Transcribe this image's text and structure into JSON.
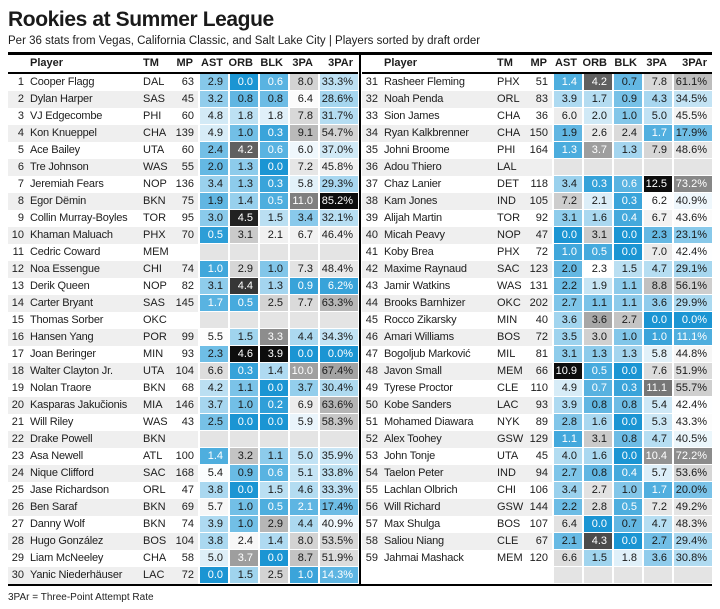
{
  "title": "Rookies at Summer League",
  "subtitle": "Per 36 stats from Vegas, California Classic, and Salt Lake City | Players sorted by draft order",
  "footnote": "3PAr = Three-Point Attempt Rate",
  "columns": [
    "Player",
    "TM",
    "MP",
    "AST",
    "ORB",
    "BLK",
    "3PA",
    "3PAr"
  ],
  "palette": {
    "stops": [
      [
        0,
        "#1b95d3"
      ],
      [
        0.25,
        "#7fc5e9"
      ],
      [
        0.45,
        "#d7ecf7"
      ],
      [
        0.5,
        "#ffffff"
      ],
      [
        0.55,
        "#ededed"
      ],
      [
        0.75,
        "#b4b4b4"
      ],
      [
        0.88,
        "#7f7f7f"
      ],
      [
        1,
        "#0d0d0d"
      ]
    ],
    "white_text_low": 0.17,
    "white_text_high": 0.8,
    "dark_text": "#1a1a1a",
    "white_text": "#ffffff",
    "stripe": "#efefef",
    "missing_cell": "#e4e4e4"
  },
  "chart_data": {
    "type": "table",
    "title": "Rookies at Summer League",
    "stat_columns": [
      "AST",
      "ORB",
      "BLK",
      "3PA",
      "3PAr"
    ],
    "players": [
      {
        "rank": 1,
        "name": "Cooper Flagg",
        "tm": "DAL",
        "mp": 63,
        "ast": 2.9,
        "orb": 0.0,
        "blk": 0.6,
        "tpa": 8.0,
        "tpar": 33.3
      },
      {
        "rank": 2,
        "name": "Dylan Harper",
        "tm": "SAS",
        "mp": 45,
        "ast": 3.2,
        "orb": 0.8,
        "blk": 0.8,
        "tpa": 6.4,
        "tpar": 28.6
      },
      {
        "rank": 3,
        "name": "VJ Edgecombe",
        "tm": "PHI",
        "mp": 60,
        "ast": 4.8,
        "orb": 1.8,
        "blk": 1.8,
        "tpa": 7.8,
        "tpar": 31.7
      },
      {
        "rank": 4,
        "name": "Kon Knueppel",
        "tm": "CHA",
        "mp": 139,
        "ast": 4.9,
        "orb": 1.0,
        "blk": 0.3,
        "tpa": 9.1,
        "tpar": 54.7
      },
      {
        "rank": 5,
        "name": "Ace Bailey",
        "tm": "UTA",
        "mp": 60,
        "ast": 2.4,
        "orb": 4.2,
        "blk": 0.6,
        "tpa": 6.0,
        "tpar": 37.0
      },
      {
        "rank": 6,
        "name": "Tre Johnson",
        "tm": "WAS",
        "mp": 55,
        "ast": 2.0,
        "orb": 1.3,
        "blk": 0.0,
        "tpa": 7.2,
        "tpar": 45.8
      },
      {
        "rank": 7,
        "name": "Jeremiah Fears",
        "tm": "NOP",
        "mp": 136,
        "ast": 3.4,
        "orb": 1.3,
        "blk": 0.3,
        "tpa": 5.8,
        "tpar": 29.3
      },
      {
        "rank": 8,
        "name": "Egor Dëmin",
        "tm": "BKN",
        "mp": 75,
        "ast": 1.9,
        "orb": 1.4,
        "blk": 0.5,
        "tpa": 11.0,
        "tpar": 85.2
      },
      {
        "rank": 9,
        "name": "Collin Murray-Boyles",
        "tm": "TOR",
        "mp": 95,
        "ast": 3.0,
        "orb": 4.5,
        "blk": 1.5,
        "tpa": 3.4,
        "tpar": 32.1
      },
      {
        "rank": 10,
        "name": "Khaman Maluach",
        "tm": "PHX",
        "mp": 70,
        "ast": 0.5,
        "orb": 3.1,
        "blk": 2.1,
        "tpa": 6.7,
        "tpar": 46.4
      },
      {
        "rank": 11,
        "name": "Cedric Coward",
        "tm": "MEM",
        "mp": null,
        "ast": null,
        "orb": null,
        "blk": null,
        "tpa": null,
        "tpar": null
      },
      {
        "rank": 12,
        "name": "Noa Essengue",
        "tm": "CHI",
        "mp": 74,
        "ast": 1.0,
        "orb": 2.9,
        "blk": 1.0,
        "tpa": 7.3,
        "tpar": 48.4
      },
      {
        "rank": 13,
        "name": "Derik Queen",
        "tm": "NOP",
        "mp": 82,
        "ast": 3.1,
        "orb": 4.4,
        "blk": 1.3,
        "tpa": 0.9,
        "tpar": 6.2
      },
      {
        "rank": 14,
        "name": "Carter Bryant",
        "tm": "SAS",
        "mp": 145,
        "ast": 1.7,
        "orb": 0.5,
        "blk": 2.5,
        "tpa": 7.7,
        "tpar": 63.3
      },
      {
        "rank": 15,
        "name": "Thomas Sorber",
        "tm": "OKC",
        "mp": null,
        "ast": null,
        "orb": null,
        "blk": null,
        "tpa": null,
        "tpar": null
      },
      {
        "rank": 16,
        "name": "Hansen Yang",
        "tm": "POR",
        "mp": 99,
        "ast": 5.5,
        "orb": 1.5,
        "blk": 3.3,
        "tpa": 4.4,
        "tpar": 34.3
      },
      {
        "rank": 17,
        "name": "Joan Beringer",
        "tm": "MIN",
        "mp": 93,
        "ast": 2.3,
        "orb": 4.6,
        "blk": 3.9,
        "tpa": 0.0,
        "tpar": 0.0
      },
      {
        "rank": 18,
        "name": "Walter Clayton Jr.",
        "tm": "UTA",
        "mp": 104,
        "ast": 6.6,
        "orb": 0.3,
        "blk": 1.4,
        "tpa": 10.0,
        "tpar": 67.4
      },
      {
        "rank": 19,
        "name": "Nolan Traore",
        "tm": "BKN",
        "mp": 68,
        "ast": 4.2,
        "orb": 1.1,
        "blk": 0.0,
        "tpa": 3.7,
        "tpar": 30.4
      },
      {
        "rank": 20,
        "name": "Kasparas Jakučionis",
        "tm": "MIA",
        "mp": 146,
        "ast": 3.7,
        "orb": 1.0,
        "blk": 0.2,
        "tpa": 6.9,
        "tpar": 63.6
      },
      {
        "rank": 21,
        "name": "Will Riley",
        "tm": "WAS",
        "mp": 43,
        "ast": 2.5,
        "orb": 0.0,
        "blk": 0.0,
        "tpa": 5.9,
        "tpar": 58.3
      },
      {
        "rank": 22,
        "name": "Drake Powell",
        "tm": "BKN",
        "mp": null,
        "ast": null,
        "orb": null,
        "blk": null,
        "tpa": null,
        "tpar": null
      },
      {
        "rank": 23,
        "name": "Asa Newell",
        "tm": "ATL",
        "mp": 100,
        "ast": 1.4,
        "orb": 3.2,
        "blk": 1.1,
        "tpa": 5.0,
        "tpar": 35.9
      },
      {
        "rank": 24,
        "name": "Nique Clifford",
        "tm": "SAC",
        "mp": 168,
        "ast": 5.4,
        "orb": 0.9,
        "blk": 0.6,
        "tpa": 5.1,
        "tpar": 33.8
      },
      {
        "rank": 25,
        "name": "Jase Richardson",
        "tm": "ORL",
        "mp": 47,
        "ast": 3.8,
        "orb": 0.0,
        "blk": 1.5,
        "tpa": 4.6,
        "tpar": 33.3
      },
      {
        "rank": 26,
        "name": "Ben Saraf",
        "tm": "BKN",
        "mp": 69,
        "ast": 5.7,
        "orb": 1.0,
        "blk": 0.5,
        "tpa": 2.1,
        "tpar": 17.4
      },
      {
        "rank": 27,
        "name": "Danny Wolf",
        "tm": "BKN",
        "mp": 74,
        "ast": 3.9,
        "orb": 1.0,
        "blk": 2.9,
        "tpa": 4.4,
        "tpar": 40.9
      },
      {
        "rank": 28,
        "name": "Hugo González",
        "tm": "BOS",
        "mp": 104,
        "ast": 3.8,
        "orb": 2.4,
        "blk": 1.4,
        "tpa": 8.0,
        "tpar": 53.5
      },
      {
        "rank": 29,
        "name": "Liam McNeeley",
        "tm": "CHA",
        "mp": 58,
        "ast": 5.0,
        "orb": 3.7,
        "blk": 0.0,
        "tpa": 8.7,
        "tpar": 51.9
      },
      {
        "rank": 30,
        "name": "Yanic Niederhäuser",
        "tm": "LAC",
        "mp": 72,
        "ast": 0.0,
        "orb": 1.5,
        "blk": 2.5,
        "tpa": 1.0,
        "tpar": 14.3
      },
      {
        "rank": 31,
        "name": "Rasheer Fleming",
        "tm": "PHX",
        "mp": 51,
        "ast": 1.4,
        "orb": 4.2,
        "blk": 0.7,
        "tpa": 7.8,
        "tpar": 61.1
      },
      {
        "rank": 32,
        "name": "Noah Penda",
        "tm": "ORL",
        "mp": 83,
        "ast": 3.9,
        "orb": 1.7,
        "blk": 0.9,
        "tpa": 4.3,
        "tpar": 34.5
      },
      {
        "rank": 33,
        "name": "Sion James",
        "tm": "CHA",
        "mp": 36,
        "ast": 6.0,
        "orb": 2.0,
        "blk": 1.0,
        "tpa": 5.0,
        "tpar": 45.5
      },
      {
        "rank": 34,
        "name": "Ryan Kalkbrenner",
        "tm": "CHA",
        "mp": 150,
        "ast": 1.9,
        "orb": 2.6,
        "blk": 2.4,
        "tpa": 1.7,
        "tpar": 17.9
      },
      {
        "rank": 35,
        "name": "Johni Broome",
        "tm": "PHI",
        "mp": 164,
        "ast": 1.3,
        "orb": 3.7,
        "blk": 1.3,
        "tpa": 7.9,
        "tpar": 48.6
      },
      {
        "rank": 36,
        "name": "Adou Thiero",
        "tm": "LAL",
        "mp": null,
        "ast": null,
        "orb": null,
        "blk": null,
        "tpa": null,
        "tpar": null
      },
      {
        "rank": 37,
        "name": "Chaz Lanier",
        "tm": "DET",
        "mp": 118,
        "ast": 3.4,
        "orb": 0.3,
        "blk": 0.6,
        "tpa": 12.5,
        "tpar": 73.2
      },
      {
        "rank": 38,
        "name": "Kam Jones",
        "tm": "IND",
        "mp": 105,
        "ast": 7.2,
        "orb": 2.1,
        "blk": 0.3,
        "tpa": 6.2,
        "tpar": 40.9
      },
      {
        "rank": 39,
        "name": "Alijah Martin",
        "tm": "TOR",
        "mp": 92,
        "ast": 3.1,
        "orb": 1.6,
        "blk": 0.4,
        "tpa": 6.7,
        "tpar": 43.6
      },
      {
        "rank": 40,
        "name": "Micah Peavy",
        "tm": "NOP",
        "mp": 47,
        "ast": 0.0,
        "orb": 3.1,
        "blk": 0.0,
        "tpa": 2.3,
        "tpar": 23.1
      },
      {
        "rank": 41,
        "name": "Koby Brea",
        "tm": "PHX",
        "mp": 72,
        "ast": 1.0,
        "orb": 0.5,
        "blk": 0.0,
        "tpa": 7.0,
        "tpar": 42.4
      },
      {
        "rank": 42,
        "name": "Maxime Raynaud",
        "tm": "SAC",
        "mp": 123,
        "ast": 2.0,
        "orb": 2.3,
        "blk": 1.5,
        "tpa": 4.7,
        "tpar": 29.1
      },
      {
        "rank": 43,
        "name": "Jamir Watkins",
        "tm": "WAS",
        "mp": 131,
        "ast": 2.2,
        "orb": 1.9,
        "blk": 1.1,
        "tpa": 8.8,
        "tpar": 56.1
      },
      {
        "rank": 44,
        "name": "Brooks Barnhizer",
        "tm": "OKC",
        "mp": 202,
        "ast": 2.7,
        "orb": 1.1,
        "blk": 1.1,
        "tpa": 3.6,
        "tpar": 29.9
      },
      {
        "rank": 45,
        "name": "Rocco Zikarsky",
        "tm": "MIN",
        "mp": 40,
        "ast": 3.6,
        "orb": 3.6,
        "blk": 2.7,
        "tpa": 0.0,
        "tpar": 0.0
      },
      {
        "rank": 46,
        "name": "Amari Williams",
        "tm": "BOS",
        "mp": 72,
        "ast": 3.5,
        "orb": 3.0,
        "blk": 1.0,
        "tpa": 1.0,
        "tpar": 11.1
      },
      {
        "rank": 47,
        "name": "Bogoljub Marković",
        "tm": "MIL",
        "mp": 81,
        "ast": 3.1,
        "orb": 1.3,
        "blk": 1.3,
        "tpa": 5.8,
        "tpar": 44.8
      },
      {
        "rank": 48,
        "name": "Javon Small",
        "tm": "MEM",
        "mp": 66,
        "ast": 10.9,
        "orb": 0.5,
        "blk": 0.0,
        "tpa": 7.6,
        "tpar": 51.9
      },
      {
        "rank": 49,
        "name": "Tyrese Proctor",
        "tm": "CLE",
        "mp": 110,
        "ast": 4.9,
        "orb": 0.7,
        "blk": 0.3,
        "tpa": 11.1,
        "tpar": 55.7
      },
      {
        "rank": 50,
        "name": "Kobe Sanders",
        "tm": "LAC",
        "mp": 93,
        "ast": 3.9,
        "orb": 0.8,
        "blk": 0.8,
        "tpa": 5.4,
        "tpar": 42.4
      },
      {
        "rank": 51,
        "name": "Mohamed Diawara",
        "tm": "NYK",
        "mp": 89,
        "ast": 2.8,
        "orb": 1.6,
        "blk": 0.0,
        "tpa": 5.3,
        "tpar": 43.3
      },
      {
        "rank": 52,
        "name": "Alex Toohey",
        "tm": "GSW",
        "mp": 129,
        "ast": 1.1,
        "orb": 3.1,
        "blk": 0.8,
        "tpa": 4.7,
        "tpar": 40.5
      },
      {
        "rank": 53,
        "name": "John Tonje",
        "tm": "UTA",
        "mp": 45,
        "ast": 4.0,
        "orb": 1.6,
        "blk": 0.0,
        "tpa": 10.4,
        "tpar": 72.2
      },
      {
        "rank": 54,
        "name": "Taelon Peter",
        "tm": "IND",
        "mp": 94,
        "ast": 2.7,
        "orb": 0.8,
        "blk": 0.4,
        "tpa": 5.7,
        "tpar": 53.6
      },
      {
        "rank": 55,
        "name": "Lachlan Olbrich",
        "tm": "CHI",
        "mp": 106,
        "ast": 3.4,
        "orb": 2.7,
        "blk": 1.0,
        "tpa": 1.7,
        "tpar": 20.0
      },
      {
        "rank": 56,
        "name": "Will Richard",
        "tm": "GSW",
        "mp": 144,
        "ast": 2.2,
        "orb": 2.8,
        "blk": 0.5,
        "tpa": 7.2,
        "tpar": 49.2
      },
      {
        "rank": 57,
        "name": "Max Shulga",
        "tm": "BOS",
        "mp": 107,
        "ast": 6.4,
        "orb": 0.0,
        "blk": 0.7,
        "tpa": 4.7,
        "tpar": 48.3
      },
      {
        "rank": 58,
        "name": "Saliou Niang",
        "tm": "CLE",
        "mp": 67,
        "ast": 2.1,
        "orb": 4.3,
        "blk": 0.0,
        "tpa": 2.7,
        "tpar": 29.4
      },
      {
        "rank": 59,
        "name": "Jahmai Mashack",
        "tm": "MEM",
        "mp": 120,
        "ast": 6.6,
        "orb": 1.5,
        "blk": 1.8,
        "tpa": 3.6,
        "tpar": 30.8
      }
    ]
  }
}
